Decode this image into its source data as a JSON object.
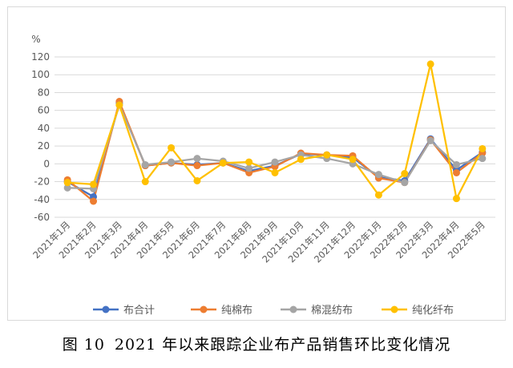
{
  "caption": {
    "figure_no": "图 10",
    "text": "2021 年以来跟踪企业布产品销售环比变化情况"
  },
  "chart_data": {
    "type": "line",
    "title": "",
    "xlabel": "",
    "ylabel": "%",
    "ylim": [
      -60,
      120
    ],
    "yticks": [
      -60,
      -40,
      -20,
      0,
      20,
      40,
      60,
      80,
      100,
      120
    ],
    "grid": true,
    "legend_position": "bottom",
    "categories": [
      "2021年1月",
      "2021年2月",
      "2021年3月",
      "2021年4月",
      "2021年5月",
      "2021年6月",
      "2021年7月",
      "2021年8月",
      "2021年9月",
      "2021年10月",
      "2021年11月",
      "2021年12月",
      "2022年1月",
      "2022年2月",
      "2022年3月",
      "2022年4月",
      "2022年5月"
    ],
    "series": [
      {
        "name": "布合计",
        "color": "#4472c4",
        "values": [
          -20,
          -37,
          68,
          -2,
          1,
          -1,
          1,
          -8,
          -2,
          11,
          10,
          7,
          -15,
          -19,
          28,
          -7,
          13
        ]
      },
      {
        "name": "纯棉布",
        "color": "#ed7d31",
        "values": [
          -18,
          -42,
          70,
          -2,
          1,
          -2,
          1,
          -10,
          -3,
          12,
          10,
          9,
          -16,
          -21,
          27,
          -10,
          12
        ]
      },
      {
        "name": "棉混纺布",
        "color": "#a5a5a5",
        "values": [
          -27,
          -28,
          66,
          -1,
          2,
          6,
          3,
          -5,
          2,
          10,
          6,
          0,
          -12,
          -21,
          26,
          -1,
          6
        ]
      },
      {
        "name": "纯化纤布",
        "color": "#ffc000",
        "values": [
          -21,
          -23,
          66,
          -20,
          18,
          -19,
          1,
          2,
          -10,
          5,
          10,
          5,
          -35,
          -11,
          112,
          -39,
          17
        ]
      }
    ]
  }
}
